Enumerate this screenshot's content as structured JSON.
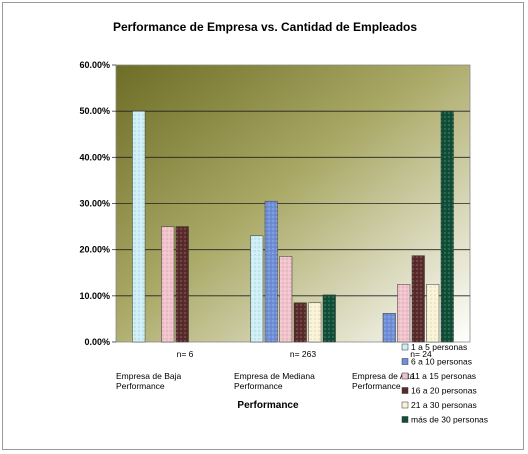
{
  "chart_data": {
    "type": "bar",
    "title": "Performance de Empresa vs. Cantidad de Empleados",
    "xlabel": "Performance",
    "ylabel": "",
    "ylim": [
      0,
      0.6
    ],
    "yticks": [
      "0.00%",
      "10.00%",
      "20.00%",
      "30.00%",
      "40.00%",
      "50.00%",
      "60.00%"
    ],
    "grid": true,
    "legend_position": "bottom-right",
    "categories": [
      {
        "line1": "Empresa de Baja",
        "line2": "Performance",
        "n": "n= 6"
      },
      {
        "line1": "Empresa de Mediana",
        "line2": "Performance",
        "n": "n= 263"
      },
      {
        "line1": "Empresa de Alta",
        "line2": "Performance",
        "n": "n= 24"
      }
    ],
    "series": [
      {
        "name": "1 a 5 personas",
        "values": [
          0.5,
          0.23,
          0.0
        ],
        "color": "#cdeff7"
      },
      {
        "name": "6 a 10 personas",
        "values": [
          0.0,
          0.305,
          0.062
        ],
        "color": "#6f8fd8"
      },
      {
        "name": "11 a 15 personas",
        "values": [
          0.25,
          0.185,
          0.125
        ],
        "color": "#f2c3cc"
      },
      {
        "name": "16 a 20 personas",
        "values": [
          0.25,
          0.085,
          0.187
        ],
        "color": "#5a2b2b"
      },
      {
        "name": "21 a 30 personas",
        "values": [
          0.0,
          0.085,
          0.125
        ],
        "color": "#faf3d6"
      },
      {
        "name": "más de 30 personas",
        "values": [
          0.0,
          0.102,
          0.5
        ],
        "color": "#0f4f38"
      }
    ]
  }
}
